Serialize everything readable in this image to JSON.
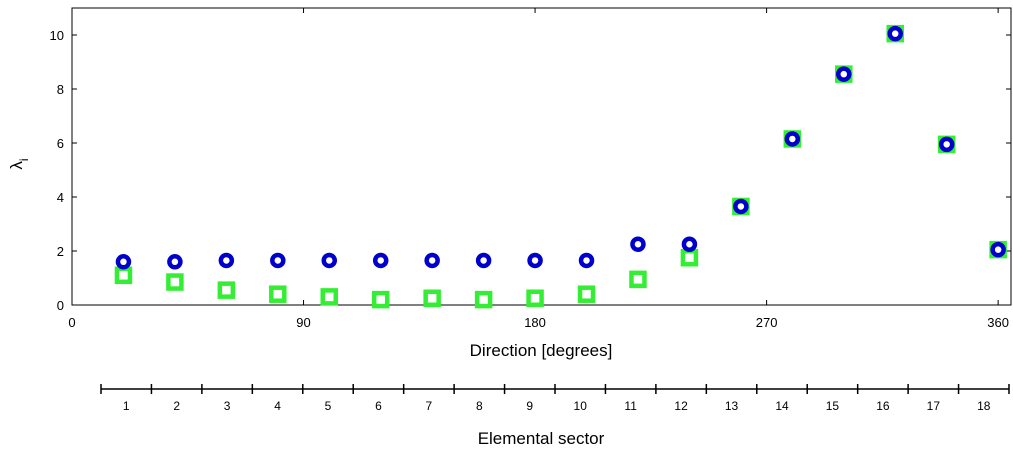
{
  "chart_data": [
    {
      "type": "scatter",
      "title": "",
      "xlabel": "Direction [degrees]",
      "ylabel": "λ",
      "ylabel_subscript": "i",
      "xlim": [
        0,
        365
      ],
      "ylim": [
        0,
        11
      ],
      "xticks": [
        "0",
        "90",
        "180",
        "270",
        "360"
      ],
      "yticks": [
        "0",
        "2",
        "4",
        "6",
        "8",
        "10"
      ],
      "grid": false,
      "legend": "none",
      "series": [
        {
          "marker": "circle",
          "color": "#0000cc",
          "x": [
            20,
            40,
            60,
            80,
            100,
            120,
            140,
            160,
            180,
            200,
            220,
            240,
            260,
            280,
            300,
            320,
            340,
            360
          ],
          "y": [
            1.6,
            1.6,
            1.65,
            1.65,
            1.65,
            1.65,
            1.65,
            1.65,
            1.65,
            1.65,
            2.25,
            2.25,
            3.65,
            6.15,
            8.55,
            10.05,
            5.95,
            2.05
          ]
        },
        {
          "marker": "square",
          "color": "#33ee33",
          "x": [
            20,
            40,
            60,
            80,
            100,
            120,
            140,
            160,
            180,
            200,
            220,
            240,
            260,
            280,
            300,
            320,
            340,
            360
          ],
          "y": [
            1.1,
            0.85,
            0.55,
            0.4,
            0.3,
            0.2,
            0.25,
            0.2,
            0.25,
            0.4,
            0.95,
            1.75,
            3.65,
            6.15,
            8.55,
            10.05,
            5.95,
            2.05
          ]
        }
      ]
    },
    {
      "type": "axis",
      "xlabel": "Elemental sector",
      "categories": [
        "1",
        "2",
        "3",
        "4",
        "5",
        "6",
        "7",
        "8",
        "9",
        "10",
        "11",
        "12",
        "13",
        "14",
        "15",
        "16",
        "17",
        "18"
      ]
    }
  ]
}
